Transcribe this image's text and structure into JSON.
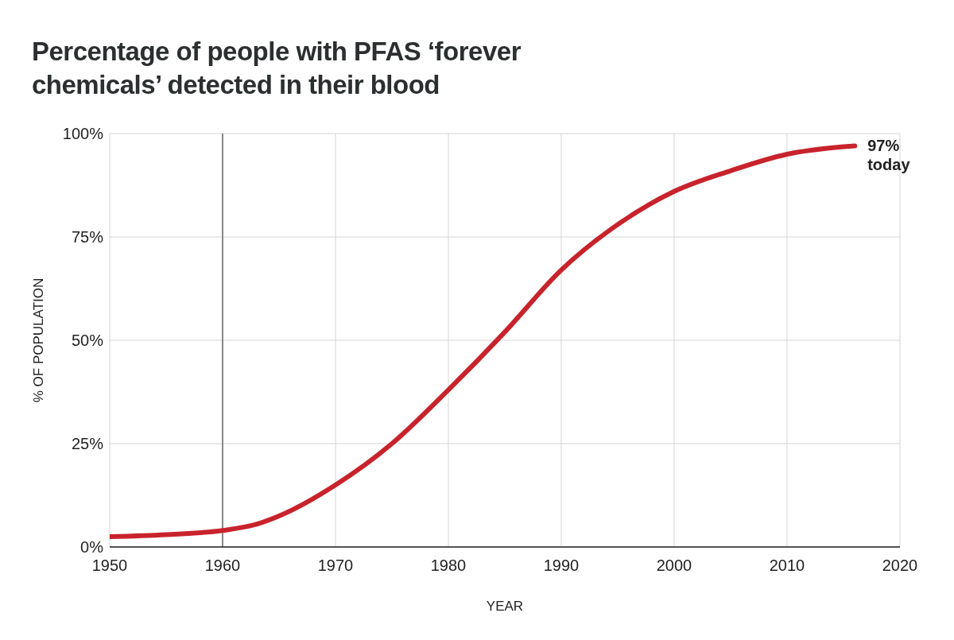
{
  "chart_data": {
    "type": "line",
    "title": "Percentage of people with PFAS ‘forever chemicals’ detected in their blood",
    "xlabel": "YEAR",
    "ylabel": "% OF POPULATION",
    "x": [
      1950,
      1955,
      1960,
      1963,
      1965,
      1970,
      1975,
      1980,
      1985,
      1990,
      1995,
      2000,
      2005,
      2010,
      2016
    ],
    "series": [
      {
        "color": "#c8232c",
        "values": [
          2.5,
          3,
          4,
          5.5,
          7.5,
          15,
          25,
          38,
          52,
          67,
          78,
          86,
          91,
          95,
          97
        ]
      }
    ],
    "xlim": [
      1950,
      2020
    ],
    "xticks": [
      1950,
      1960,
      1970,
      1980,
      1990,
      2000,
      2010,
      2020
    ],
    "ylim": [
      0,
      100
    ],
    "yticks": [
      {
        "value": 0,
        "label": "0%"
      },
      {
        "value": 25,
        "label": "25%"
      },
      {
        "value": 50,
        "label": "50%"
      },
      {
        "value": 75,
        "label": "75%"
      },
      {
        "value": 100,
        "label": "100%"
      }
    ],
    "grid": true,
    "marker": "none",
    "line_style": "solid",
    "ref_lines": [
      {
        "axis": "x",
        "value": 1960,
        "color": "#888888"
      }
    ],
    "annotations": [
      {
        "text": "97% today",
        "x": 2016,
        "y": 97
      }
    ]
  }
}
